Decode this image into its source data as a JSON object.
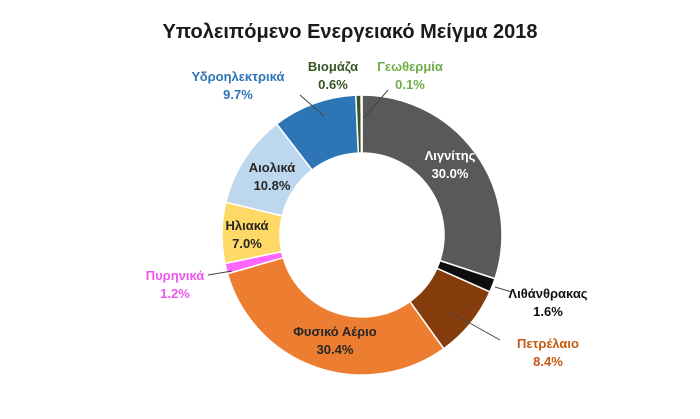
{
  "chart_data": {
    "type": "pie",
    "title": "Υπολειπόμενο Ενεργειακό Μείγμα 2018",
    "donut": true,
    "slices": [
      {
        "label": "Λιγνίτης",
        "value_label": "30.0%",
        "value": 30.0,
        "color": "#595959",
        "text_color": "#ffffff"
      },
      {
        "label": "Λιθάνθρακας",
        "value_label": "1.6%",
        "value": 1.6,
        "color": "#0d0d0d",
        "text_color": "#111111"
      },
      {
        "label": "Πετρέλαιο",
        "value_label": "8.4%",
        "value": 8.4,
        "color": "#843c0c",
        "text_color": "#c55a11"
      },
      {
        "label": "Φυσικό Αέριο",
        "value_label": "30.4%",
        "value": 30.4,
        "color": "#ed7d31",
        "text_color": "#262626"
      },
      {
        "label": "Πυρηνικά",
        "value_label": "1.2%",
        "value": 1.2,
        "color": "#ff66ff",
        "text_color": "#ee55ee"
      },
      {
        "label": "Ηλιακά",
        "value_label": "7.0%",
        "value": 7.0,
        "color": "#ffd966",
        "text_color": "#262626"
      },
      {
        "label": "Αιολικά",
        "value_label": "10.8%",
        "value": 10.8,
        "color": "#bdd7ee",
        "text_color": "#262626"
      },
      {
        "label": "Υδροηλεκτρικά",
        "value_label": "9.7%",
        "value": 9.7,
        "color": "#2e75b6",
        "text_color": "#2e75b6"
      },
      {
        "label": "Βιομάζα",
        "value_label": "0.6%",
        "value": 0.6,
        "color": "#375623",
        "text_color": "#375623"
      },
      {
        "label": "Γεωθερμία",
        "value_label": "0.1%",
        "value": 0.1,
        "color": "#70ad47",
        "text_color": "#70ad47"
      }
    ]
  }
}
